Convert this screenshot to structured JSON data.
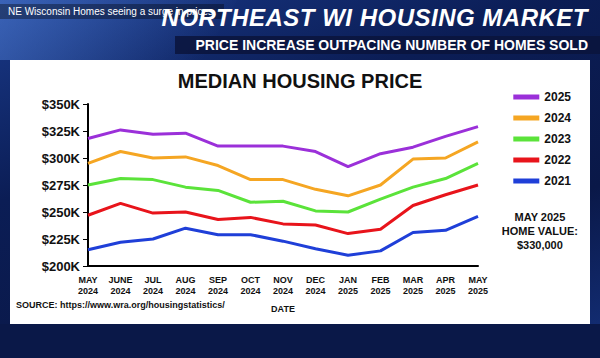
{
  "header": {
    "caption": "NE Wisconsin Homes seeing a surge in prices.",
    "title": "NORTHEAST WI HOUSING MARKET",
    "subtitle": "PRICE INCREASE OUTPACING NUMBER OF HOMES SOLD"
  },
  "chart_data": {
    "type": "line",
    "title": "MEDIAN HOUSING PRICE",
    "x_label": "DATE",
    "source": "SOURCE: https://www.wra.org/housingstatistics/",
    "annotation": [
      "MAY 2025",
      "HOME VALUE:",
      "$330,000"
    ],
    "categories": [
      "MAY 2024",
      "JUNE 2024",
      "JUL 2024",
      "AUG 2024",
      "SEP 2024",
      "OCT 2024",
      "NOV 2024",
      "DEC 2024",
      "JAN 2025",
      "FEB 2025",
      "MAR 2025",
      "APR 2025",
      "MAY 2025"
    ],
    "series": [
      {
        "name": "2025",
        "color": "#9b30d9",
        "values": [
          318000,
          326000,
          322000,
          323000,
          311000,
          311000,
          311000,
          306000,
          292000,
          304000,
          310000,
          320000,
          329000
        ]
      },
      {
        "name": "2024",
        "color": "#f5a623",
        "values": [
          295000,
          306000,
          300000,
          301000,
          293000,
          280000,
          280000,
          271000,
          265000,
          275000,
          299000,
          300000,
          315000
        ]
      },
      {
        "name": "2023",
        "color": "#5be33a",
        "values": [
          275000,
          281000,
          280000,
          273000,
          270000,
          259000,
          260000,
          251000,
          250000,
          262000,
          273000,
          281000,
          295000
        ]
      },
      {
        "name": "2022",
        "color": "#e8141b",
        "values": [
          247000,
          258000,
          249000,
          250000,
          243000,
          245000,
          239000,
          238000,
          230000,
          234000,
          256000,
          266000,
          275000
        ]
      },
      {
        "name": "2021",
        "color": "#1f3fd8",
        "values": [
          215000,
          222000,
          225000,
          235000,
          229000,
          229000,
          223000,
          216000,
          210000,
          214000,
          231000,
          233000,
          246000
        ]
      }
    ],
    "ylim": [
      200000,
      350000
    ],
    "yticks": [
      {
        "value": 200000,
        "label": "$200K"
      },
      {
        "value": 225000,
        "label": "$225K"
      },
      {
        "value": 250000,
        "label": "$250K"
      },
      {
        "value": 275000,
        "label": "$275K"
      },
      {
        "value": 300000,
        "label": "$300K"
      },
      {
        "value": 325000,
        "label": "$325K"
      },
      {
        "value": 350000,
        "label": "$350K"
      }
    ],
    "grid": false,
    "legend": "right"
  }
}
